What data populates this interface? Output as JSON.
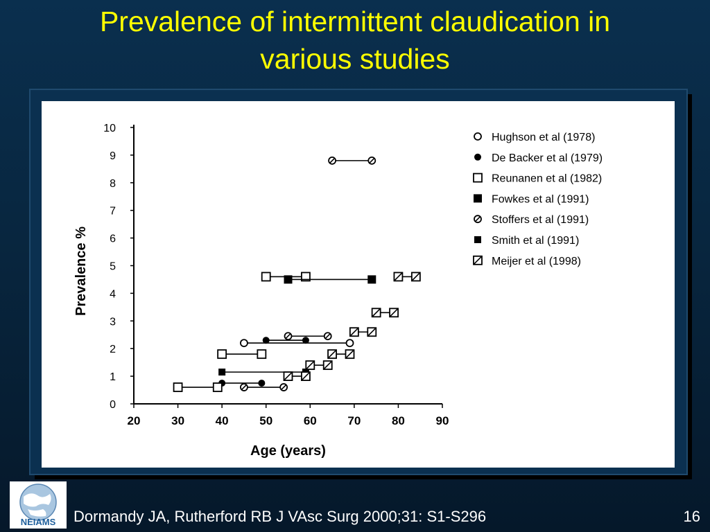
{
  "slide": {
    "title_line1": "Prevalence of intermittent claudication in",
    "title_line2": "various studies",
    "reference": "Dormandy JA, Rutherford RB  J VAsc Surg 2000;31: S1-S296",
    "page_number": "16",
    "logo_text": "NEIAMS",
    "colors": {
      "title": "#ffff00",
      "background": "#0a2f4e",
      "text": "#ffffff"
    }
  },
  "chart_data": {
    "type": "scatter",
    "title": "",
    "xlabel": "Age (years)",
    "ylabel": "Prevalence %",
    "xlim": [
      20,
      90
    ],
    "ylim": [
      0,
      10
    ],
    "xticks": [
      "20",
      "30",
      "40",
      "50",
      "60",
      "70",
      "80",
      "90"
    ],
    "yticks": [
      "0",
      "1",
      "2",
      "3",
      "4",
      "5",
      "6",
      "7",
      "8",
      "9",
      "10"
    ],
    "grid": false,
    "legend_position": "top-right",
    "series": [
      {
        "name": "Hughson et al (1978)",
        "marker": "open-circle",
        "segments": [
          {
            "x": [
              45,
              69
            ],
            "y": 2.2
          }
        ]
      },
      {
        "name": "De Backer et al (1979)",
        "marker": "filled-circle",
        "segments": [
          {
            "x": [
              40,
              49
            ],
            "y": 0.75
          },
          {
            "x": [
              50,
              59
            ],
            "y": 2.3
          }
        ]
      },
      {
        "name": "Reunanen et al (1982)",
        "marker": "open-square",
        "segments": [
          {
            "x": [
              30,
              39
            ],
            "y": 0.6
          },
          {
            "x": [
              40,
              49
            ],
            "y": 1.8
          },
          {
            "x": [
              50,
              59
            ],
            "y": 4.6
          }
        ]
      },
      {
        "name": "Fowkes et al (1991)",
        "marker": "filled-square",
        "segments": [
          {
            "x": [
              55,
              74
            ],
            "y": 4.5
          }
        ]
      },
      {
        "name": "Stoffers et al (1991)",
        "marker": "slashed-circle",
        "segments": [
          {
            "x": [
              45,
              54
            ],
            "y": 0.6
          },
          {
            "x": [
              55,
              64
            ],
            "y": 2.45
          },
          {
            "x": [
              65,
              74
            ],
            "y": 8.8
          }
        ]
      },
      {
        "name": "Smith et al (1991)",
        "marker": "filled-square-small",
        "segments": [
          {
            "x": [
              40,
              59
            ],
            "y": 1.15
          }
        ]
      },
      {
        "name": "Meijer et al (1998)",
        "marker": "slashed-square",
        "segments": [
          {
            "x": [
              55,
              59
            ],
            "y": 1.0
          },
          {
            "x": [
              60,
              64
            ],
            "y": 1.4
          },
          {
            "x": [
              65,
              69
            ],
            "y": 1.8
          },
          {
            "x": [
              70,
              74
            ],
            "y": 2.6
          },
          {
            "x": [
              75,
              79
            ],
            "y": 3.3
          },
          {
            "x": [
              80,
              84
            ],
            "y": 4.6
          }
        ]
      }
    ]
  }
}
